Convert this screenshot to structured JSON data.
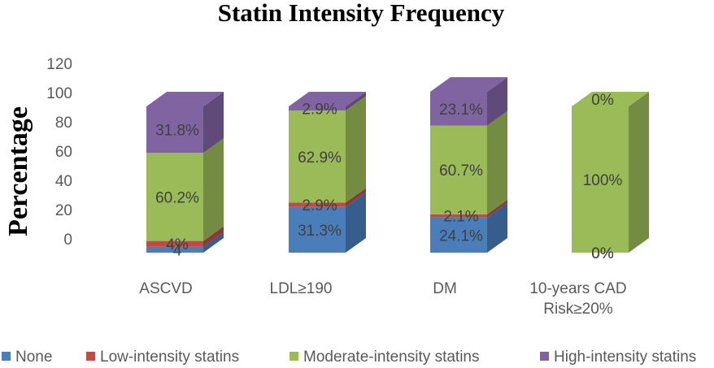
{
  "chart_data": {
    "type": "bar",
    "stacked": true,
    "three_d": true,
    "title": "Statin Intensity Frequency",
    "xlabel": "",
    "ylabel": "Percentage",
    "ylim": [
      0,
      120
    ],
    "yticks": [
      0,
      20,
      40,
      60,
      80,
      100,
      120
    ],
    "grid": false,
    "legend_position": "bottom",
    "categories": [
      [
        "ASCVD"
      ],
      [
        "LDL≥190"
      ],
      [
        "DM"
      ],
      [
        "10-years CAD",
        "Risk≥20%"
      ]
    ],
    "series": [
      {
        "name": "None",
        "color": "#4a7ebb",
        "side_color": "#375d8c",
        "values": [
          4,
          31.3,
          24.1,
          0
        ],
        "labels": [
          "4",
          "31.3%",
          "24.1%",
          "0%"
        ]
      },
      {
        "name": "Low-intensity statins",
        "color": "#be4b48",
        "side_color": "#8e3735",
        "values": [
          4,
          2.9,
          2.1,
          0
        ],
        "labels": [
          "4%",
          "2.9%",
          "2.1%",
          "0%"
        ]
      },
      {
        "name": "Moderate-intensity statins",
        "color": "#9bbb59",
        "side_color": "#748b42",
        "values": [
          60.2,
          62.9,
          60.7,
          100
        ],
        "labels": [
          "60.2%",
          "62.9%",
          "60.7%",
          "100%"
        ]
      },
      {
        "name": "High-intensity statins",
        "color": "#8064a2",
        "side_color": "#5f4a79",
        "values": [
          31.8,
          2.9,
          23.1,
          0
        ],
        "labels": [
          "31.8%",
          "2.9%",
          "23.1%",
          "0%"
        ]
      }
    ]
  }
}
